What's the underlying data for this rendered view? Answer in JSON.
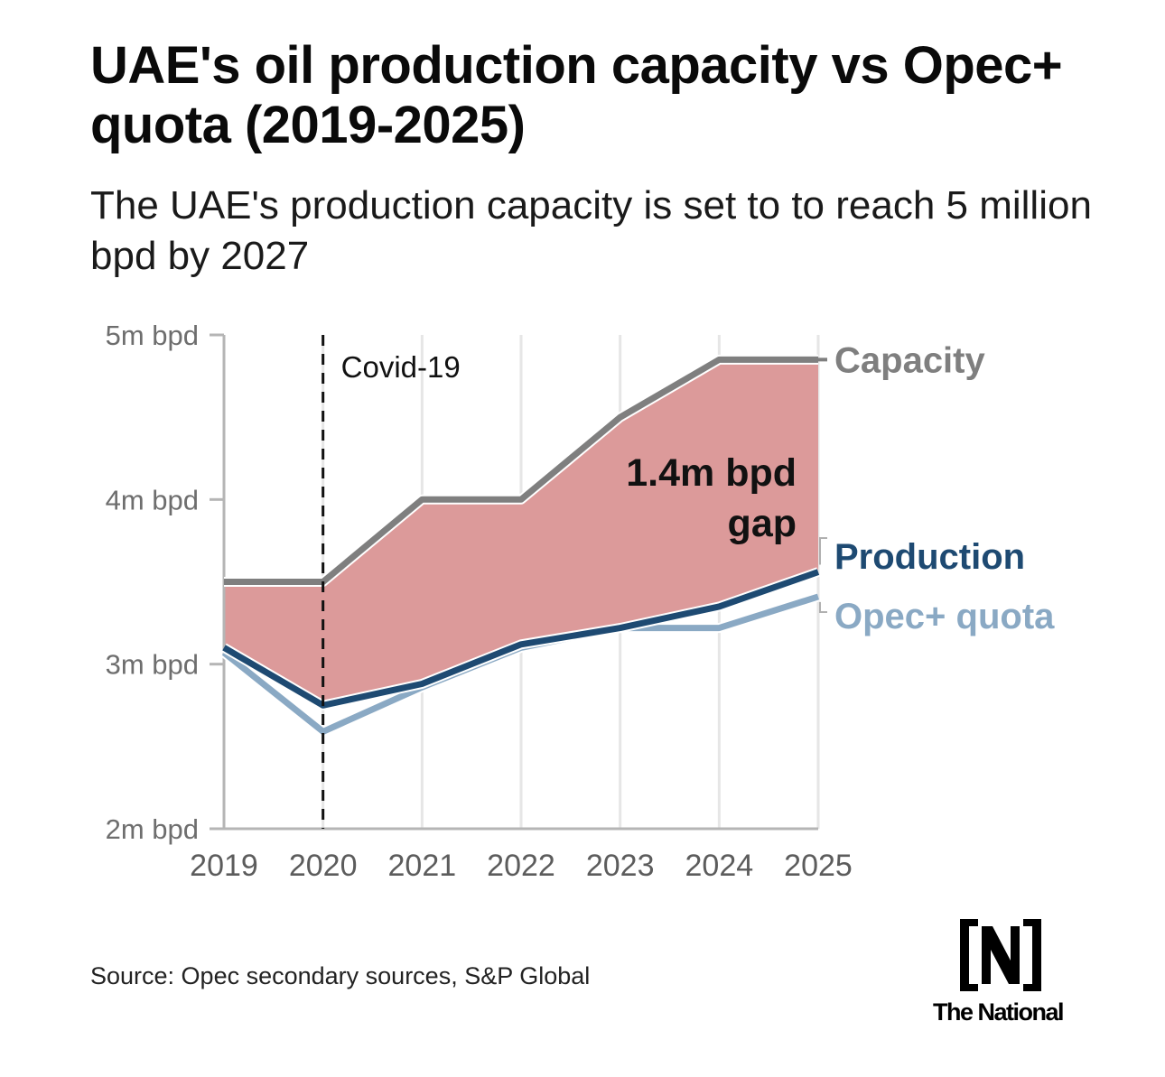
{
  "title": "UAE's oil production capacity vs Opec+ quota (2019-2025)",
  "subtitle": "The UAE's production capacity is set to to reach 5 million bpd by 2027",
  "source": "Source: Opec secondary sources, S&P Global",
  "brand": {
    "name": "The National",
    "mark": "N"
  },
  "chart_data": {
    "type": "line",
    "categories": [
      "2019",
      "2020",
      "2021",
      "2022",
      "2023",
      "2024",
      "2025"
    ],
    "y_ticks": [
      2,
      3,
      4,
      5
    ],
    "y_tick_labels": [
      "2m bpd",
      "3m bpd",
      "4m bpd",
      "5m bpd"
    ],
    "ylim": [
      2,
      5
    ],
    "grid": true,
    "series": [
      {
        "name": "Capacity",
        "label": "Capacity",
        "color": "#7f7f7f",
        "values": [
          3.5,
          3.5,
          4.0,
          4.0,
          4.5,
          4.85,
          4.85
        ]
      },
      {
        "name": "Production",
        "label": "Production",
        "color": "#1e4a72",
        "values": [
          3.1,
          2.75,
          2.88,
          3.12,
          3.22,
          3.35,
          3.56
        ]
      },
      {
        "name": "Opec+ quota",
        "label": "Opec+ quota",
        "color": "#8aa9c4",
        "values": [
          3.07,
          2.59,
          2.86,
          3.1,
          3.22,
          3.22,
          3.41
        ]
      }
    ],
    "gap_area": {
      "between": [
        "Capacity",
        "Production"
      ],
      "color": "#dc9a9a",
      "label_lines": [
        "1.4m bpd",
        "gap"
      ]
    },
    "annotations": [
      {
        "x": "2020",
        "label": "Covid-19",
        "style": "dashed"
      }
    ]
  }
}
